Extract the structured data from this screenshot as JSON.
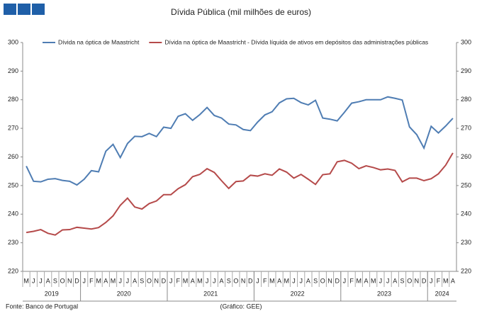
{
  "chart_data": {
    "type": "line",
    "title": "Dívida Pública (mil milhões de euros)",
    "categories": [
      "M",
      "J",
      "J",
      "A",
      "S",
      "O",
      "N",
      "D",
      "J",
      "F",
      "M",
      "A",
      "M",
      "J",
      "J",
      "A",
      "S",
      "O",
      "N",
      "D",
      "J",
      "F",
      "M",
      "A",
      "M",
      "J",
      "J",
      "A",
      "S",
      "O",
      "N",
      "D",
      "J",
      "F",
      "M",
      "A",
      "M",
      "J",
      "J",
      "A",
      "S",
      "O",
      "N",
      "D",
      "J",
      "F",
      "M",
      "A",
      "M",
      "J",
      "J",
      "A",
      "S",
      "O",
      "N",
      "D",
      "J",
      "F",
      "M",
      "A"
    ],
    "year_labels": [
      "2019",
      "2020",
      "2021",
      "2022",
      "2023",
      "2024"
    ],
    "series": [
      {
        "name": "Dívida na óptica de Maastricht",
        "color": "#4f7db3",
        "values": [
          256.8,
          251.5,
          251.3,
          252.2,
          252.4,
          251.8,
          251.5,
          250.2,
          252.2,
          255.2,
          254.8,
          262.0,
          264.4,
          259.8,
          264.7,
          267.2,
          267.1,
          268.2,
          267.1,
          270.4,
          270.0,
          274.2,
          275.1,
          272.8,
          274.8,
          277.3,
          274.5,
          273.6,
          271.5,
          271.2,
          269.6,
          269.2,
          272.2,
          274.7,
          275.8,
          278.9,
          280.3,
          280.5,
          279.0,
          278.2,
          279.8,
          273.6,
          273.2,
          272.6,
          275.6,
          278.8,
          279.3,
          280.0,
          280.0,
          280.0,
          281.0,
          280.5,
          279.9,
          270.5,
          267.8,
          263.1,
          270.7,
          268.4,
          270.8,
          273.5
        ]
      },
      {
        "name": "Dívida na óptica de Maastricht - Dívida líquida de ativos em depósitos das administrações públicas",
        "color": "#b54a4a",
        "values": [
          233.6,
          234.0,
          234.6,
          233.3,
          232.7,
          234.5,
          234.6,
          235.4,
          235.1,
          234.8,
          235.3,
          237.1,
          239.4,
          243.1,
          245.6,
          242.5,
          241.8,
          243.7,
          244.6,
          246.8,
          246.8,
          248.9,
          250.3,
          253.1,
          253.9,
          255.9,
          254.6,
          251.7,
          249.0,
          251.4,
          251.6,
          253.6,
          253.3,
          254.1,
          253.6,
          255.8,
          254.7,
          252.6,
          253.9,
          252.2,
          250.4,
          253.8,
          254.1,
          258.3,
          258.8,
          257.8,
          255.9,
          256.9,
          256.3,
          255.5,
          255.8,
          255.3,
          251.3,
          252.6,
          252.6,
          251.7,
          252.4,
          254.1,
          257.1,
          261.4
        ]
      }
    ],
    "ylim": [
      220,
      300
    ],
    "yticks": [
      220,
      230,
      240,
      250,
      260,
      270,
      280,
      290,
      300
    ],
    "y2lim": [
      220,
      300
    ],
    "y2ticks": [
      220,
      230,
      240,
      250,
      260,
      270,
      280,
      290,
      300
    ],
    "grid": false,
    "source": "Fonte: Banco de Portugal",
    "note": "(Gráfico: GEE)"
  }
}
